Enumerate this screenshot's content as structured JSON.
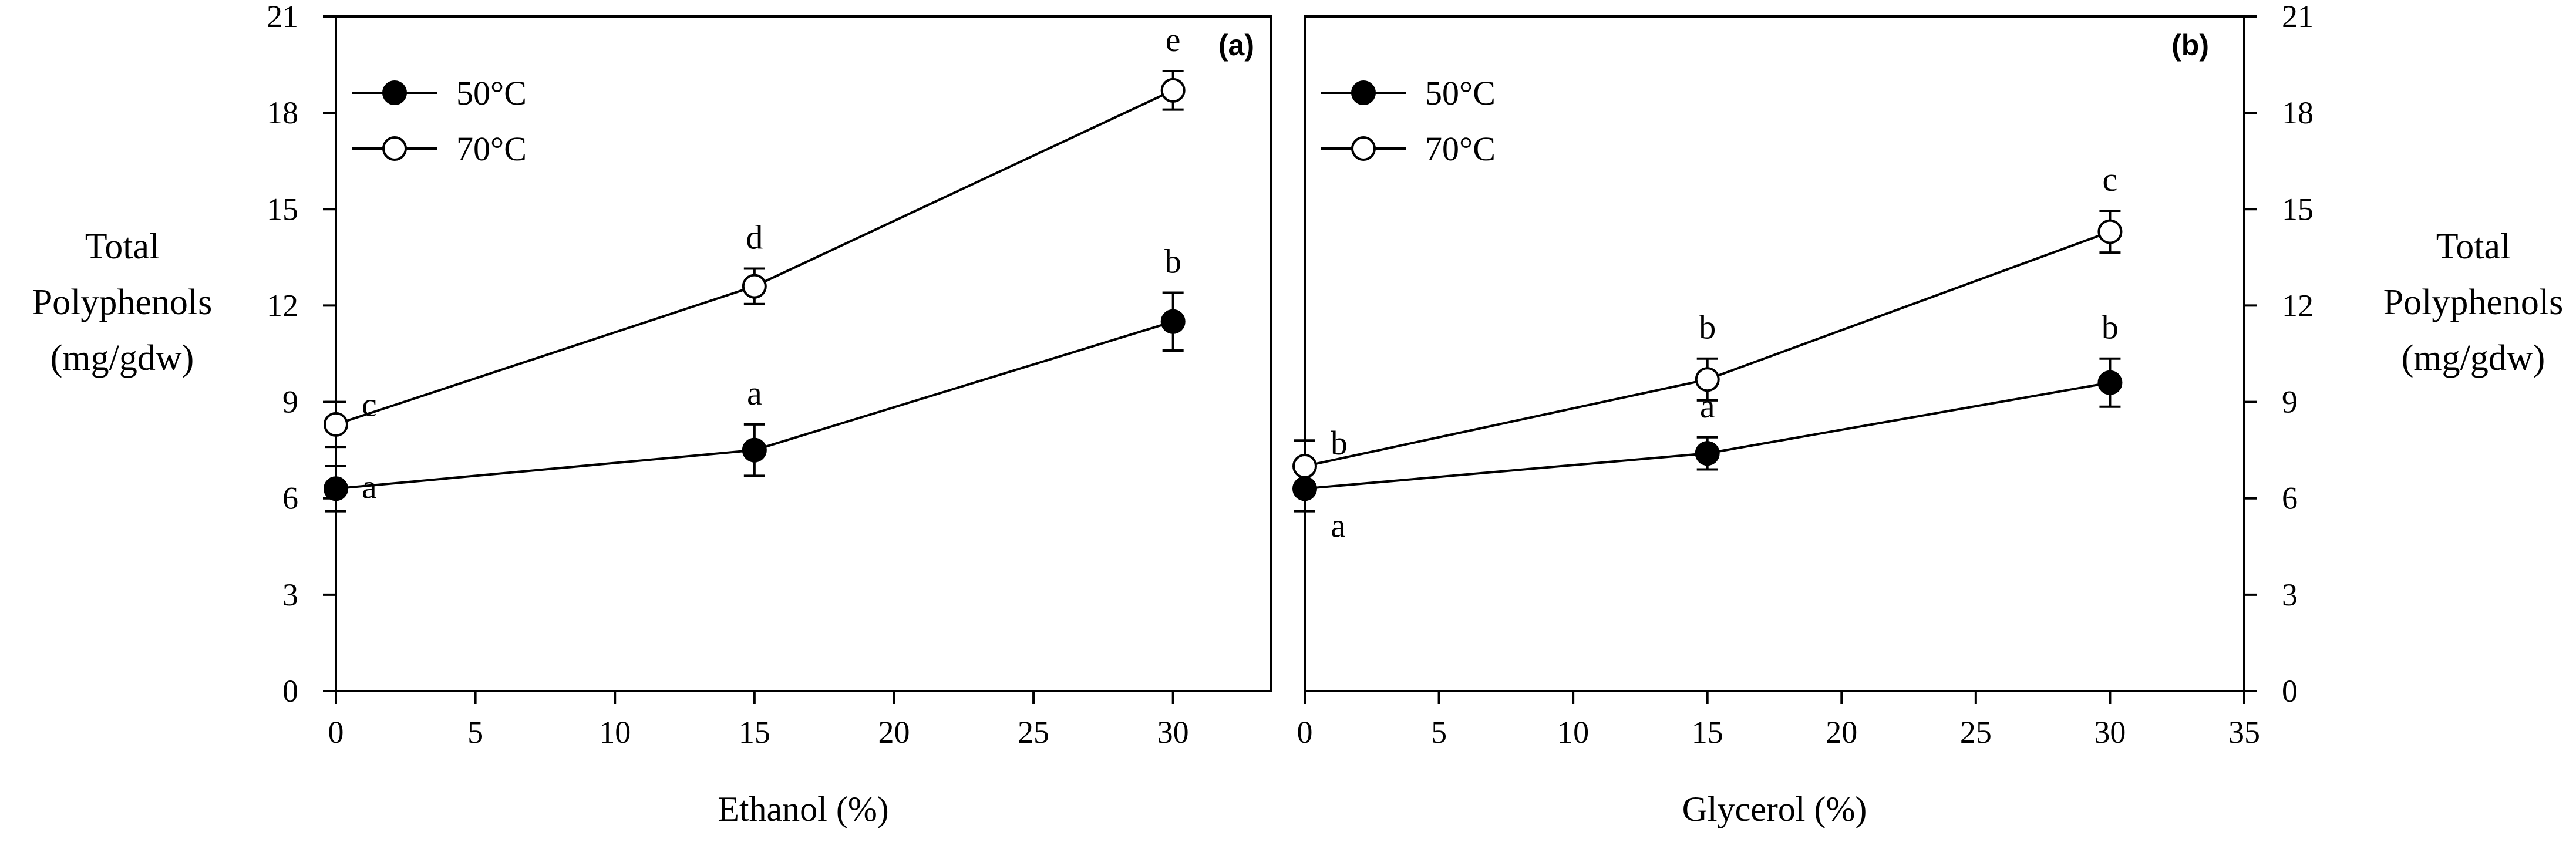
{
  "chart_data": [
    {
      "type": "line",
      "panel_label": "(a)",
      "xlabel": "Ethanol (%)",
      "ylabel": [
        "Total",
        "Polyphenols",
        "(mg/gdw)"
      ],
      "x_ticks": [
        "0",
        "5",
        "10",
        "15",
        "20",
        "25",
        "30"
      ],
      "xlim": [
        0,
        33.5
      ],
      "y_ticks": [
        "0",
        "3",
        "6",
        "9",
        "12",
        "15",
        "18",
        "21"
      ],
      "ylim": [
        0,
        21
      ],
      "y_axis_side": "left",
      "legend_position": "top-left",
      "series": [
        {
          "name": "50°C",
          "marker": "filled-circle",
          "x": [
            0,
            15,
            30
          ],
          "y": [
            6.3,
            7.5,
            11.5
          ],
          "err": [
            0.7,
            0.8,
            0.9
          ],
          "labels": [
            "a",
            "a",
            "b"
          ]
        },
        {
          "name": "70°C",
          "marker": "open-circle",
          "x": [
            0,
            15,
            30
          ],
          "y": [
            8.3,
            12.6,
            18.7
          ],
          "err": [
            0.7,
            0.55,
            0.6
          ],
          "labels": [
            "c",
            "d",
            "e"
          ]
        }
      ]
    },
    {
      "type": "line",
      "panel_label": "(b)",
      "xlabel": "Glycerol (%)",
      "ylabel": [
        "Total",
        "Polyphenols",
        "(mg/gdw)"
      ],
      "x_ticks": [
        "0",
        "5",
        "10",
        "15",
        "20",
        "25",
        "30",
        "35"
      ],
      "xlim": [
        0,
        35
      ],
      "y_ticks": [
        "0",
        "3",
        "6",
        "9",
        "12",
        "15",
        "18",
        "21"
      ],
      "ylim": [
        0,
        21
      ],
      "y_axis_side": "right",
      "legend_position": "top-left",
      "series": [
        {
          "name": "50°C",
          "marker": "filled-circle",
          "x": [
            0,
            15,
            30
          ],
          "y": [
            6.3,
            7.4,
            9.6
          ],
          "err": [
            0.7,
            0.5,
            0.75
          ],
          "labels": [
            "a",
            "a",
            "b"
          ]
        },
        {
          "name": "70°C",
          "marker": "open-circle",
          "x": [
            0,
            15,
            30
          ],
          "y": [
            7.0,
            9.7,
            14.3
          ],
          "err": [
            0.8,
            0.65,
            0.65
          ],
          "labels": [
            "b",
            "b",
            "c"
          ]
        }
      ]
    }
  ]
}
